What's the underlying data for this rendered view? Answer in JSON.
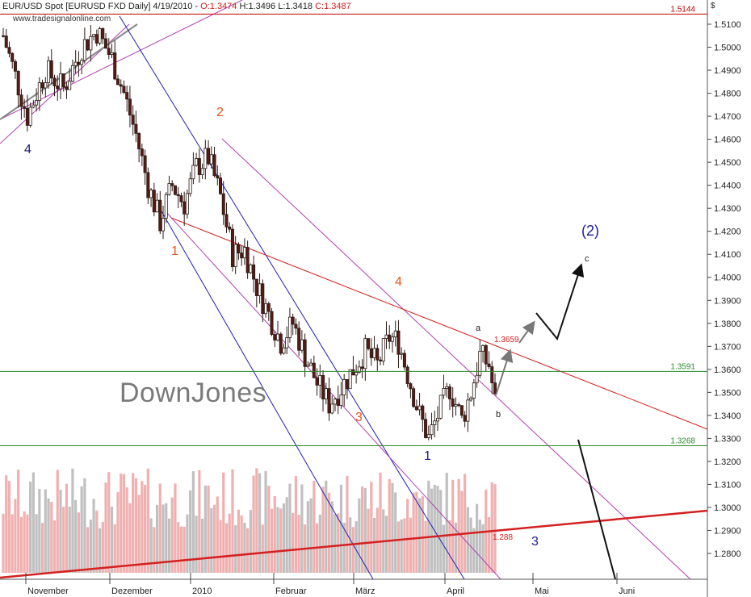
{
  "header": {
    "symbol": "EUR/USD Spot [EURUSD FXD  Daily] 4/19/2010 -",
    "open": "O:1.3474",
    "high": "H:1.3496",
    "low": "L:1.3418",
    "close": "C:1.3487"
  },
  "source": "www.tradesignalonline.com",
  "watermark": "DownJones",
  "currency_symbol": "$",
  "chart_data": {
    "type": "candlestick",
    "x_ticks": [
      "November",
      "Dezember",
      "2010",
      "Februar",
      "März",
      "April",
      "Mai",
      "Juni"
    ],
    "y_ticks": [
      "1.2800",
      "1.2900",
      "1.3000",
      "1.3100",
      "1.3200",
      "1.3300",
      "1.3400",
      "1.3500",
      "1.3600",
      "1.3700",
      "1.3800",
      "1.3900",
      "1.4000",
      "1.4100",
      "1.4200",
      "1.4300",
      "1.4400",
      "1.4500",
      "1.4600",
      "1.4700",
      "1.4800",
      "1.4900",
      "1.5000",
      "1.5100"
    ],
    "ylim": [
      1.2715,
      1.5185
    ],
    "levels": [
      {
        "value": 1.5144,
        "label": "1.5144",
        "color": "#c00000"
      },
      {
        "value": 1.3591,
        "label": "1.3591",
        "color": "#2a8a2a"
      },
      {
        "value": 1.3268,
        "label": "1.3268",
        "color": "#2a8a2a"
      }
    ],
    "point_labels": [
      {
        "text": "1.3659",
        "color": "#d42020"
      },
      {
        "text": "1.288",
        "color": "#d42020"
      }
    ],
    "wave_labels": [
      {
        "text": "4",
        "color": "#1a1a6e"
      },
      {
        "text": "2",
        "color": "#e8531c"
      },
      {
        "text": "1",
        "color": "#e8531c"
      },
      {
        "text": "4",
        "color": "#e8531c"
      },
      {
        "text": "3",
        "color": "#e8531c"
      },
      {
        "text": "1",
        "color": "#1a1a8e"
      },
      {
        "text": "3",
        "color": "#1a1a8e"
      },
      {
        "text": "(2)",
        "color": "#1a1aa0"
      },
      {
        "text": "a",
        "color": "#222222"
      },
      {
        "text": "b",
        "color": "#222222"
      },
      {
        "text": "c",
        "color": "#222222"
      }
    ],
    "colors": {
      "up": "#ffffff",
      "down": "#5a1a14",
      "volume_up": "#c0c0c0",
      "volume_down": "#f0b0b0"
    }
  }
}
